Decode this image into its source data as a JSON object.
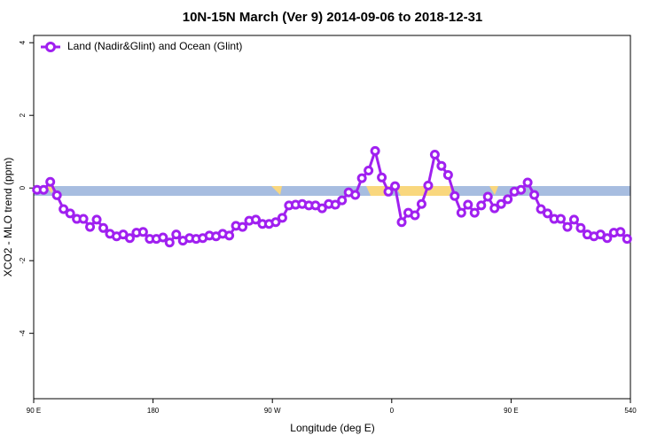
{
  "chart_data": {
    "type": "line",
    "title": "10N-15N March (Ver 9)   2014-09-06 to 2018-12-31",
    "x_label": "Longitude (deg E)",
    "y_label": "XCO2 - MLO trend (ppm)",
    "xlim": [
      90,
      540
    ],
    "ylim": [
      -5.8,
      4.2
    ],
    "xticks": [
      {
        "value": 90,
        "label": "90 E"
      },
      180,
      {
        "value": 270,
        "label": "90 W"
      },
      {
        "value": 360,
        "label": "0"
      },
      {
        "value": 450,
        "label": "90 E"
      },
      540
    ],
    "yticks": [
      -4,
      -2,
      0,
      2,
      4
    ],
    "legend": "top-left",
    "x": [
      92.5,
      97.5,
      102.5,
      107.5,
      112.5,
      117.5,
      122.5,
      127.5,
      132.5,
      137.5,
      142.5,
      147.5,
      152.5,
      157.5,
      162.5,
      167.5,
      172.5,
      177.5,
      182.5,
      187.5,
      192.5,
      197.5,
      202.5,
      207.5,
      212.5,
      217.5,
      222.5,
      227.5,
      232.5,
      237.5,
      242.5,
      247.5,
      252.5,
      257.5,
      262.5,
      267.5,
      272.5,
      277.5,
      282.5,
      287.5,
      292.5,
      297.5,
      302.5,
      307.5,
      312.5,
      317.5,
      322.5,
      327.5,
      332.5,
      337.5,
      342.5,
      347.5,
      352.5,
      357.5,
      362.5,
      367.5,
      372.5,
      377.5,
      382.5,
      387.5,
      392.5,
      397.5,
      402.5,
      407.5,
      412.5,
      417.5,
      422.5,
      427.5,
      432.5,
      437.5,
      442.5,
      447.5,
      452.5,
      457.5,
      462.5,
      467.5,
      472.5,
      477.5,
      482.5,
      487.5,
      492.5,
      497.5,
      502.5,
      507.5,
      512.5,
      517.5,
      522.5,
      527.5,
      532.5,
      537.5
    ],
    "series": [
      {
        "name": "Land (Nadir&Glint) and Ocean (Glint)",
        "color": "#a020f0",
        "values": [
          -0.05,
          -0.05,
          0.17,
          -0.2,
          -0.58,
          -0.7,
          -0.85,
          -0.85,
          -1.07,
          -0.87,
          -1.1,
          -1.26,
          -1.33,
          -1.28,
          -1.38,
          -1.23,
          -1.21,
          -1.4,
          -1.4,
          -1.36,
          -1.5,
          -1.28,
          -1.45,
          -1.38,
          -1.4,
          -1.38,
          -1.31,
          -1.33,
          -1.26,
          -1.31,
          -1.04,
          -1.07,
          -0.9,
          -0.87,
          -0.99,
          -0.99,
          -0.94,
          -0.82,
          -0.48,
          -0.46,
          -0.44,
          -0.48,
          -0.48,
          -0.56,
          -0.44,
          -0.46,
          -0.34,
          -0.12,
          -0.19,
          0.27,
          0.48,
          1.02,
          0.29,
          -0.1,
          0.05,
          -0.94,
          -0.68,
          -0.75,
          -0.44,
          0.07,
          0.92,
          0.61,
          0.36,
          -0.22,
          -0.68,
          -0.46,
          -0.68,
          -0.48,
          -0.24,
          -0.56,
          -0.44,
          -0.31,
          -0.1,
          -0.05,
          0.15,
          -0.19,
          -0.58,
          -0.7,
          -0.85,
          -0.85,
          -1.07,
          -0.87,
          -1.1,
          -1.28,
          -1.33,
          -1.28,
          -1.38,
          -1.23,
          -1.21,
          -1.4
        ]
      }
    ]
  }
}
